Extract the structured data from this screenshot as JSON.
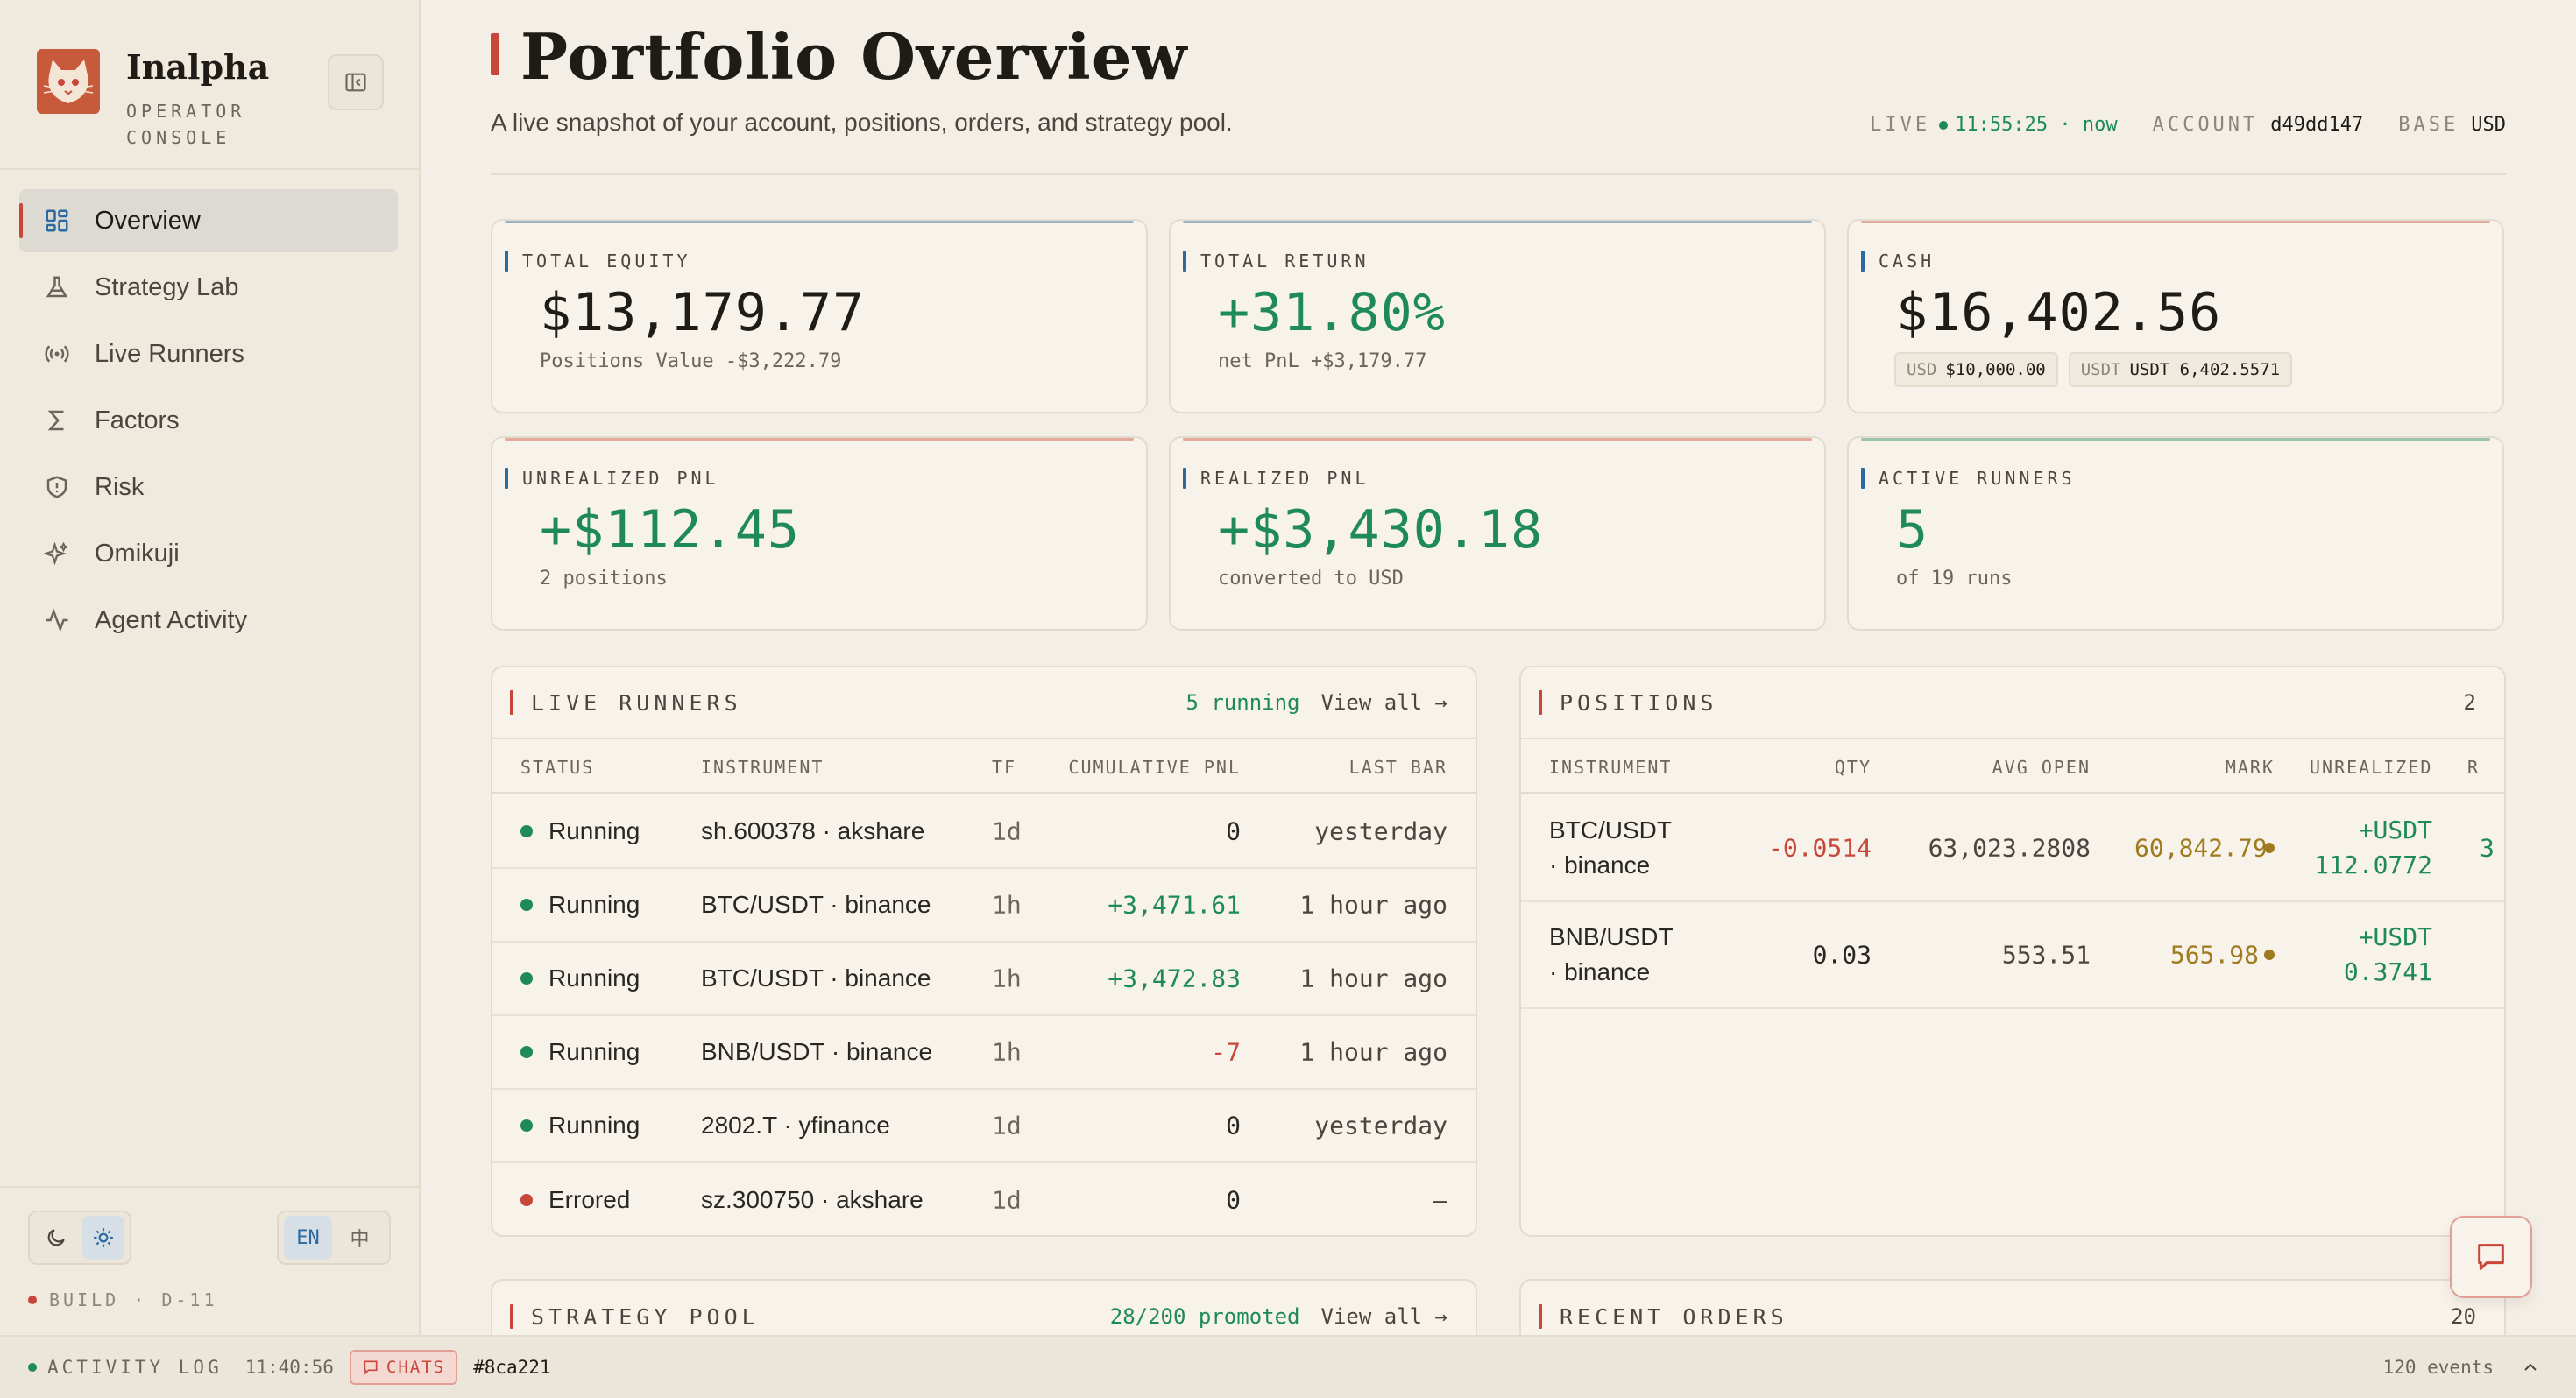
{
  "brand": {
    "name": "Inalpha",
    "sub": "OPERATOR CONSOLE"
  },
  "nav": [
    {
      "label": "Overview",
      "icon": "grid-icon"
    },
    {
      "label": "Strategy Lab",
      "icon": "flask-icon"
    },
    {
      "label": "Live Runners",
      "icon": "broadcast-icon"
    },
    {
      "label": "Factors",
      "icon": "sigma-icon"
    },
    {
      "label": "Risk",
      "icon": "shield-icon"
    },
    {
      "label": "Omikuji",
      "icon": "sparkle-icon"
    },
    {
      "label": "Agent Activity",
      "icon": "pulse-icon"
    }
  ],
  "lang": {
    "en": "EN",
    "zh": "中"
  },
  "build": "BUILD · D-11",
  "header": {
    "title": "Portfolio Overview",
    "subtitle": "A live snapshot of your account, positions, orders, and strategy pool.",
    "live_label": "LIVE",
    "live_time": "11:55:25 · now",
    "account_label": "ACCOUNT",
    "account_value": "d49dd147",
    "base_label": "BASE",
    "base_value": "USD"
  },
  "kpis": {
    "total_equity": {
      "label": "TOTAL EQUITY",
      "value": "$13,179.77",
      "sub": "Positions Value -$3,222.79"
    },
    "total_return": {
      "label": "TOTAL RETURN",
      "value": "+31.80%",
      "sub": "net PnL +$3,179.77"
    },
    "cash": {
      "label": "CASH",
      "value": "$16,402.56",
      "chip1_k": "USD",
      "chip1_v": "$10,000.00",
      "chip2_k": "USDT",
      "chip2_v": "USDT 6,402.5571"
    },
    "unrealized": {
      "label": "UNREALIZED PNL",
      "value": "+$112.45",
      "sub": "2 positions"
    },
    "realized": {
      "label": "REALIZED PNL",
      "value": "+$3,430.18",
      "sub": "converted to USD"
    },
    "active_runners": {
      "label": "ACTIVE RUNNERS",
      "value": "5",
      "sub": "of 19 runs"
    }
  },
  "live_runners": {
    "title": "LIVE RUNNERS",
    "count": "5 running",
    "view_all": "View all →",
    "columns": {
      "status": "STATUS",
      "instrument": "INSTRUMENT",
      "tf": "TF",
      "pnl": "CUMULATIVE PNL",
      "last": "LAST BAR"
    },
    "rows": [
      {
        "status": "Running",
        "instrument": "sh.600378 · akshare",
        "tf": "1d",
        "pnl": "0",
        "last": "yesterday"
      },
      {
        "status": "Running",
        "instrument": "BTC/USDT · binance",
        "tf": "1h",
        "pnl": "+3,471.61",
        "last": "1 hour ago"
      },
      {
        "status": "Running",
        "instrument": "BTC/USDT · binance",
        "tf": "1h",
        "pnl": "+3,472.83",
        "last": "1 hour ago"
      },
      {
        "status": "Running",
        "instrument": "BNB/USDT · binance",
        "tf": "1h",
        "pnl": "-7",
        "last": "1 hour ago"
      },
      {
        "status": "Running",
        "instrument": "2802.T · yfinance",
        "tf": "1d",
        "pnl": "0",
        "last": "yesterday"
      },
      {
        "status": "Errored",
        "instrument": "sz.300750 · akshare",
        "tf": "1d",
        "pnl": "0",
        "last": "–"
      }
    ]
  },
  "positions": {
    "title": "POSITIONS",
    "count": "2",
    "columns": {
      "instrument": "INSTRUMENT",
      "qty": "QTY",
      "avg": "AVG OPEN",
      "mark": "MARK",
      "unreal": "UNREALIZED",
      "next": "R"
    },
    "rows": [
      {
        "inst1": "BTC/USDT",
        "inst2": "· binance",
        "qty": "-0.0514",
        "avg": "63,023.2808",
        "mark": "60,842.79",
        "un1": "+USDT",
        "un2": "112.0772",
        "next": "3"
      },
      {
        "inst1": "BNB/USDT",
        "inst2": "· binance",
        "qty": "0.03",
        "avg": "553.51",
        "mark": "565.98",
        "un1": "+USDT",
        "un2": "0.3741",
        "next": ""
      }
    ]
  },
  "strategy_pool": {
    "title": "STRATEGY POOL",
    "promoted": "28/200 promoted",
    "view_all": "View all →"
  },
  "recent_orders": {
    "title": "RECENT ORDERS",
    "count": "20"
  },
  "statusbar": {
    "label": "ACTIVITY LOG",
    "time": "11:40:56",
    "chats": "CHATS",
    "hash": "#8ca221",
    "events": "120 events"
  },
  "colors": {
    "accent": "#c8463a",
    "green": "#1e8a5a",
    "blue": "#2c6aa0",
    "background": "#f4efe6"
  }
}
